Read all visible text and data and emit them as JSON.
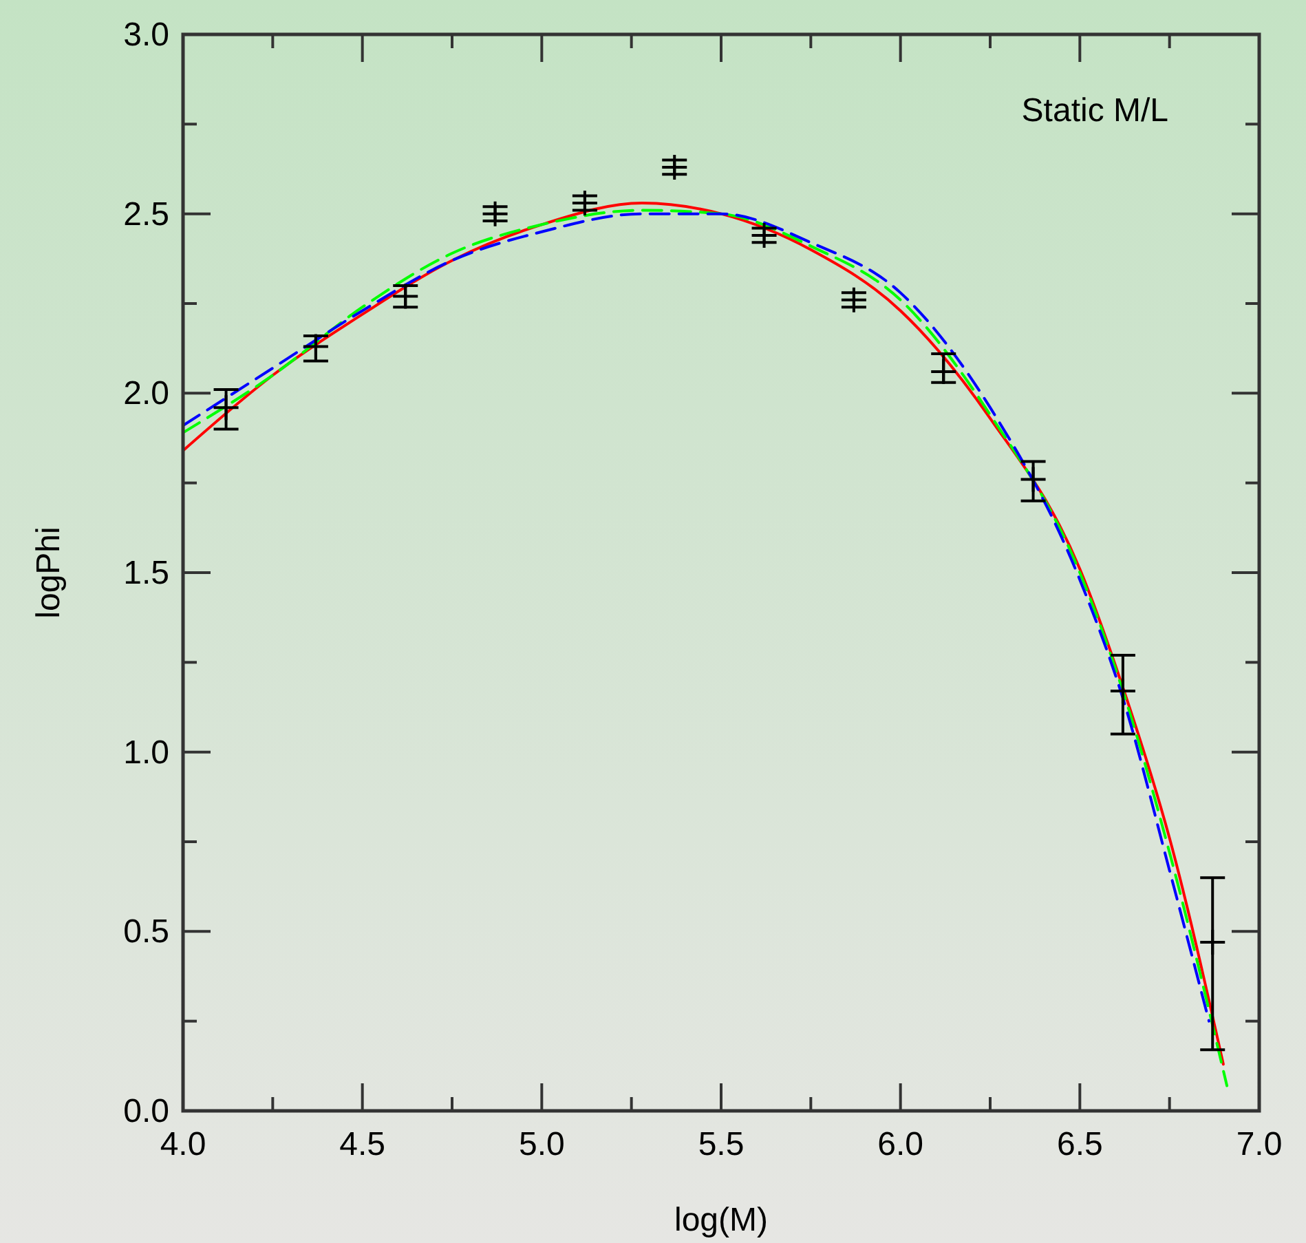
{
  "chart_data": {
    "type": "scatter",
    "xlabel": "log(M)",
    "ylabel": "logPhi",
    "annotations": [
      "Static M/L"
    ],
    "xlim": [
      4.0,
      7.0
    ],
    "ylim": [
      0.0,
      3.0
    ],
    "xticks": [
      {
        "value": 4.0,
        "label": "4.0"
      },
      {
        "value": 4.25,
        "label": null
      },
      {
        "value": 4.5,
        "label": "4.5"
      },
      {
        "value": 4.75,
        "label": null
      },
      {
        "value": 5.0,
        "label": "5.0"
      },
      {
        "value": 5.25,
        "label": null
      },
      {
        "value": 5.5,
        "label": "5.5"
      },
      {
        "value": 5.75,
        "label": null
      },
      {
        "value": 6.0,
        "label": "6.0"
      },
      {
        "value": 6.25,
        "label": null
      },
      {
        "value": 6.5,
        "label": "6.5"
      },
      {
        "value": 6.75,
        "label": null
      },
      {
        "value": 7.0,
        "label": "7.0"
      }
    ],
    "yticks": [
      {
        "value": 0.0,
        "label": "0.0"
      },
      {
        "value": 0.25,
        "label": null
      },
      {
        "value": 0.5,
        "label": "0.5"
      },
      {
        "value": 0.75,
        "label": null
      },
      {
        "value": 1.0,
        "label": "1.0"
      },
      {
        "value": 1.25,
        "label": null
      },
      {
        "value": 1.5,
        "label": "1.5"
      },
      {
        "value": 1.75,
        "label": null
      },
      {
        "value": 2.0,
        "label": "2.0"
      },
      {
        "value": 2.25,
        "label": null
      },
      {
        "value": 2.5,
        "label": "2.5"
      },
      {
        "value": 2.75,
        "label": null
      },
      {
        "value": 3.0,
        "label": "3.0"
      }
    ],
    "grid": false,
    "series": [
      {
        "color": "#000000",
        "marker": "cross",
        "x": [
          4.12,
          4.37,
          4.62,
          4.87,
          5.12,
          5.37,
          5.62,
          5.87,
          6.12,
          6.37,
          6.62,
          6.87
        ],
        "values": [
          1.96,
          2.13,
          2.27,
          2.5,
          2.53,
          2.63,
          2.44,
          2.26,
          2.06,
          1.76,
          1.17,
          0.47
        ],
        "errors": [
          [
            1.9,
            2.01
          ],
          [
            2.09,
            2.16
          ],
          [
            2.24,
            2.3
          ],
          [
            2.48,
            2.52
          ],
          [
            2.51,
            2.55
          ],
          [
            2.61,
            2.65
          ],
          [
            2.42,
            2.46
          ],
          [
            2.24,
            2.28
          ],
          [
            2.03,
            2.11
          ],
          [
            1.7,
            1.81
          ],
          [
            1.05,
            1.27
          ],
          [
            0.17,
            0.65
          ]
        ]
      },
      {
        "type": "line",
        "color": "#ff0000",
        "line_style": "solid",
        "x": [
          4.0,
          4.25,
          4.5,
          4.75,
          5.0,
          5.28,
          5.5,
          5.75,
          6.0,
          6.25,
          6.5,
          6.62,
          6.75,
          6.9
        ],
        "values": [
          1.84,
          2.05,
          2.22,
          2.37,
          2.47,
          2.53,
          2.5,
          2.4,
          2.23,
          1.93,
          1.51,
          1.18,
          0.76,
          0.13
        ]
      },
      {
        "type": "line",
        "color": "#00ff00",
        "line_style": "dashed",
        "x": [
          4.0,
          4.25,
          4.5,
          4.75,
          5.0,
          5.28,
          5.5,
          5.75,
          6.0,
          6.25,
          6.5,
          6.62,
          6.75,
          6.91
        ],
        "values": [
          1.89,
          2.05,
          2.24,
          2.39,
          2.47,
          2.51,
          2.5,
          2.41,
          2.26,
          1.94,
          1.5,
          1.17,
          0.72,
          0.07
        ]
      },
      {
        "type": "line",
        "color": "#0000ff",
        "line_style": "dashed",
        "x": [
          4.0,
          4.25,
          4.5,
          4.75,
          5.0,
          5.28,
          5.5,
          5.75,
          6.0,
          6.25,
          6.5,
          6.62,
          6.75,
          6.86
        ],
        "values": [
          1.91,
          2.07,
          2.23,
          2.37,
          2.45,
          2.5,
          2.5,
          2.42,
          2.28,
          1.96,
          1.48,
          1.15,
          0.67,
          0.25
        ]
      }
    ]
  }
}
